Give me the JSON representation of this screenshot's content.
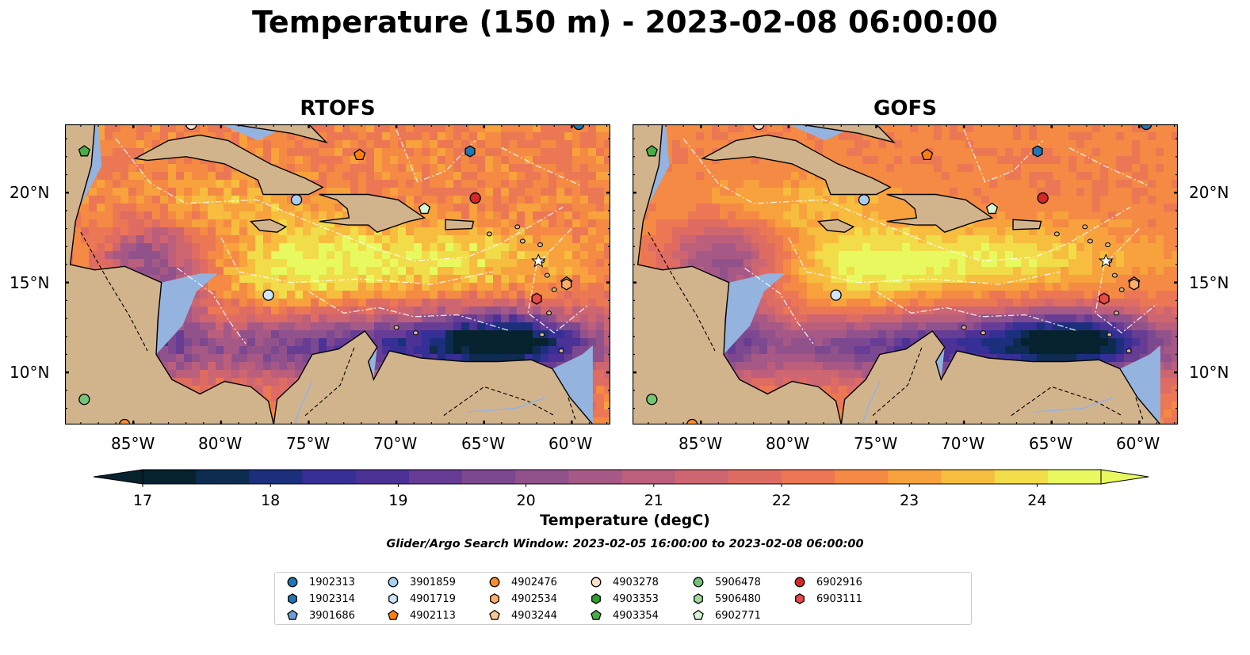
{
  "title": "Temperature (150 m) - 2023-02-08 06:00:00",
  "panels": [
    {
      "title": "RTOFS"
    },
    {
      "title": "GOFS"
    }
  ],
  "axes": {
    "lat_labels": [
      "20°N",
      "15°N",
      "10°N"
    ],
    "lon_labels": [
      "85°W",
      "80°W",
      "75°W",
      "70°W",
      "65°W",
      "60°W"
    ]
  },
  "colorbar": {
    "label": "Temperature (degC)",
    "ticks": [
      "17",
      "18",
      "19",
      "20",
      "21",
      "22",
      "23",
      "24"
    ],
    "range": [
      17,
      24.5
    ],
    "colors": [
      "#07222f",
      "#0d2c50",
      "#1c2f7d",
      "#352f96",
      "#4c3197",
      "#663c95",
      "#7c4890",
      "#91528b",
      "#a65886",
      "#bb5f7c",
      "#cd6671",
      "#de6c63",
      "#ec7754",
      "#f48a43",
      "#f7a23d",
      "#f7bd3f",
      "#f1dc4a",
      "#e7f95e"
    ]
  },
  "search_window": "Glider/Argo Search Window: 2023-02-05 16:00:00 to 2023-02-08 06:00:00",
  "legend": {
    "items": [
      {
        "id": "1902313",
        "marker": "circle",
        "color": "#1f77b4"
      },
      {
        "id": "1902314",
        "marker": "hexagon",
        "color": "#1f77b4"
      },
      {
        "id": "3901686",
        "marker": "pentagon",
        "color": "#6b9ed6"
      },
      {
        "id": "3901859",
        "marker": "circle",
        "color": "#a9cff0"
      },
      {
        "id": "4901719",
        "marker": "hexagon",
        "color": "#cfe6f8"
      },
      {
        "id": "4902113",
        "marker": "pentagon",
        "color": "#ff7f0e"
      },
      {
        "id": "4902476",
        "marker": "circle",
        "color": "#f98d2e"
      },
      {
        "id": "4902534",
        "marker": "hexagon",
        "color": "#fdae6b"
      },
      {
        "id": "4903244",
        "marker": "pentagon",
        "color": "#fdc690"
      },
      {
        "id": "4903278",
        "marker": "circle",
        "color": "#fde0c5"
      },
      {
        "id": "4903353",
        "marker": "hexagon",
        "color": "#2ca02c"
      },
      {
        "id": "4903354",
        "marker": "pentagon",
        "color": "#48ad48"
      },
      {
        "id": "5906478",
        "marker": "circle",
        "color": "#74c476"
      },
      {
        "id": "5906480",
        "marker": "hexagon",
        "color": "#a1d99b"
      },
      {
        "id": "6902771",
        "marker": "pentagon",
        "color": "#d4f5cf"
      },
      {
        "id": "6902916",
        "marker": "circle",
        "color": "#d62728"
      },
      {
        "id": "6903111",
        "marker": "hexagon",
        "color": "#e8494a"
      }
    ]
  },
  "map_colors": {
    "land": "#d2b48c",
    "shelf": "#94b3df",
    "deep_cold": "#07222f"
  }
}
